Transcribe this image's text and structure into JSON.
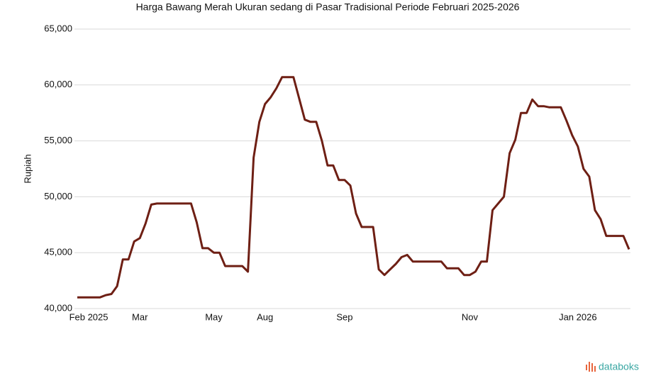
{
  "chart_data": {
    "type": "line",
    "title": "Harga Bawang Merah Ukuran sedang di Pasar Tradisional Periode Februari 2025-2026",
    "y_label": "Rupiah",
    "brand": "databoks",
    "categories": [
      null,
      null,
      "Feb 2025",
      null,
      null,
      null,
      null,
      null,
      null,
      null,
      null,
      "Mar",
      null,
      null,
      null,
      null,
      null,
      null,
      null,
      null,
      null,
      null,
      null,
      null,
      "May",
      null,
      null,
      null,
      null,
      null,
      null,
      null,
      null,
      "Aug",
      null,
      null,
      null,
      null,
      null,
      null,
      null,
      null,
      null,
      null,
      null,
      null,
      null,
      "Sep",
      null,
      null,
      null,
      null,
      null,
      null,
      null,
      null,
      null,
      null,
      null,
      null,
      null,
      null,
      null,
      null,
      null,
      null,
      null,
      null,
      null,
      "Nov",
      null,
      null,
      null,
      null,
      null,
      null,
      null,
      null,
      null,
      null,
      null,
      null,
      null,
      null,
      null,
      null,
      null,
      null,
      "Jan 2026",
      null,
      null,
      null,
      null,
      null,
      null,
      null,
      null,
      null
    ],
    "series": [
      {
        "name": "Harga",
        "color": "#6e1f14",
        "values": [
          41000,
          41000,
          41000,
          41000,
          41000,
          41200,
          41300,
          42000,
          44400,
          44400,
          46000,
          46300,
          47600,
          49300,
          49400,
          49400,
          49400,
          49400,
          49400,
          49400,
          49400,
          47700,
          45400,
          45400,
          45000,
          45000,
          43800,
          43800,
          43800,
          43800,
          43300,
          53500,
          56700,
          58300,
          58900,
          59700,
          60700,
          60700,
          60700,
          58800,
          56900,
          56700,
          56700,
          55000,
          52800,
          52800,
          51500,
          51500,
          51000,
          48500,
          47300,
          47300,
          47300,
          43500,
          43000,
          43500,
          44000,
          44600,
          44800,
          44200,
          44200,
          44200,
          44200,
          44200,
          44200,
          43600,
          43600,
          43600,
          43000,
          43000,
          43300,
          44200,
          44200,
          48800,
          49400,
          50000,
          53900,
          55100,
          57500,
          57500,
          58700,
          58100,
          58100,
          58000,
          58000,
          58000,
          56800,
          55500,
          54500,
          52500,
          51800,
          48800,
          48000,
          46500,
          46500,
          46500,
          46500,
          45300
        ]
      }
    ],
    "ylim": [
      40000,
      65000
    ],
    "yticks": [
      {
        "value": 40000,
        "label": "40,000"
      },
      {
        "value": 45000,
        "label": "45,000"
      },
      {
        "value": 50000,
        "label": "50,000"
      },
      {
        "value": 55000,
        "label": "55,000"
      },
      {
        "value": 60000,
        "label": "60,000"
      },
      {
        "value": 65000,
        "label": "65,000"
      }
    ],
    "grid": true
  }
}
